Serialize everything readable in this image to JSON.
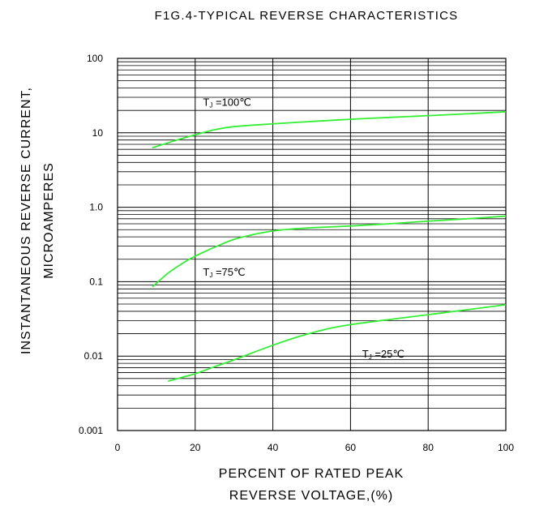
{
  "chart_data": {
    "type": "line",
    "title": "F1G.4-TYPICAL REVERSE CHARACTERISTICS",
    "xlabel": [
      "PERCENT OF RATED PEAK",
      "REVERSE VOLTAGE,(%)"
    ],
    "ylabel": [
      "INSTANTANEOUS REVERSE CURRENT,",
      "MICROAMPERES"
    ],
    "x_ticks": [
      "0",
      "20",
      "40",
      "60",
      "80",
      "100"
    ],
    "y_ticks": [
      "0.001",
      "0.01",
      "0.1",
      "1.0",
      "10",
      "100"
    ],
    "xlim": [
      0,
      100
    ],
    "ylim": [
      0.001,
      100
    ],
    "y_scale": "log",
    "grid": true,
    "line_color": "#33ee33",
    "series": [
      {
        "label_main": "T",
        "label_sub": "J",
        "label_rest": " =100℃",
        "label_at": [
          22,
          23
        ],
        "points": [
          [
            9,
            6.3
          ],
          [
            15,
            7.9
          ],
          [
            20,
            9.4
          ],
          [
            25,
            11.0
          ],
          [
            30,
            12.1
          ],
          [
            40,
            13.2
          ],
          [
            50,
            14.2
          ],
          [
            60,
            15.2
          ],
          [
            70,
            16.1
          ],
          [
            80,
            17.0
          ],
          [
            90,
            18.0
          ],
          [
            100,
            19.2
          ]
        ]
      },
      {
        "label_main": "T",
        "label_sub": "J",
        "label_rest": " =75℃",
        "label_at": [
          22,
          0.12
        ],
        "points": [
          [
            9,
            0.085
          ],
          [
            13,
            0.13
          ],
          [
            17,
            0.18
          ],
          [
            20,
            0.22
          ],
          [
            25,
            0.29
          ],
          [
            30,
            0.37
          ],
          [
            35,
            0.43
          ],
          [
            40,
            0.48
          ],
          [
            45,
            0.51
          ],
          [
            50,
            0.53
          ],
          [
            60,
            0.56
          ],
          [
            70,
            0.6
          ],
          [
            80,
            0.65
          ],
          [
            90,
            0.7
          ],
          [
            100,
            0.76
          ]
        ]
      },
      {
        "label_main": "T",
        "label_sub": "J",
        "label_rest": " =25℃",
        "label_at": [
          63,
          0.0095
        ],
        "points": [
          [
            13,
            0.0046
          ],
          [
            20,
            0.0058
          ],
          [
            25,
            0.0072
          ],
          [
            30,
            0.0089
          ],
          [
            35,
            0.0112
          ],
          [
            40,
            0.014
          ],
          [
            45,
            0.0172
          ],
          [
            50,
            0.0205
          ],
          [
            55,
            0.0238
          ],
          [
            60,
            0.0265
          ],
          [
            70,
            0.031
          ],
          [
            80,
            0.036
          ],
          [
            90,
            0.042
          ],
          [
            100,
            0.049
          ]
        ]
      }
    ]
  }
}
